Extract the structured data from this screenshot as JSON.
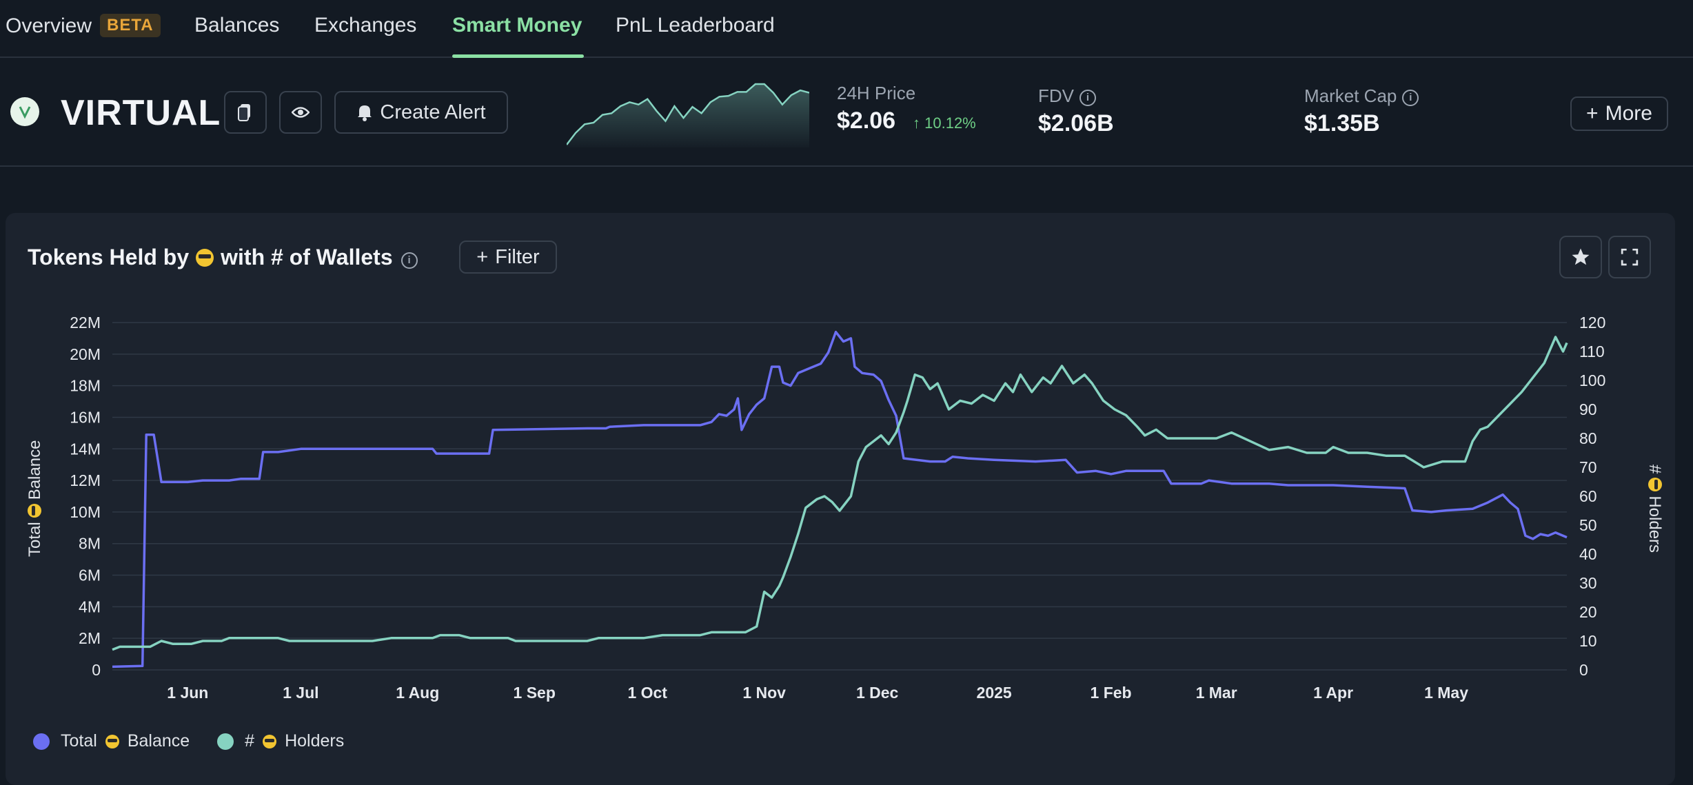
{
  "nav": {
    "items": [
      {
        "label": "Overview",
        "badge": "BETA"
      },
      {
        "label": "Balances"
      },
      {
        "label": "Exchanges"
      },
      {
        "label": "Smart Money",
        "active": true
      },
      {
        "label": "PnL Leaderboard"
      }
    ]
  },
  "header": {
    "token": "VIRTUAL",
    "create_alert": "Create Alert",
    "price_label": "24H Price",
    "price_value": "$2.06",
    "price_change": "10.12%",
    "fdv_label": "FDV",
    "fdv_value": "$2.06B",
    "mcap_label": "Market Cap",
    "mcap_value": "$1.35B",
    "more": "More",
    "spark_values": [
      2,
      3.5,
      4.6,
      4.8,
      5.8,
      6,
      6.9,
      7.4,
      7.1,
      7.8,
      6.3,
      5,
      6.9,
      5.4,
      6.8,
      6,
      7.4,
      8.1,
      8.2,
      8.7,
      8.7,
      9.7,
      9.7,
      8.6,
      7.1,
      8.3,
      8.9,
      8.6
    ]
  },
  "chart_panel": {
    "title_prefix": "Tokens Held by",
    "title_suffix": "with # of Wallets",
    "filter": "Filter",
    "left_axis_title_a": "Total",
    "left_axis_title_b": "Balance",
    "right_axis_title_a": "#",
    "right_axis_title_b": "Holders",
    "legend": [
      {
        "label_a": "Total",
        "label_b": "Balance",
        "color": "#6b6ff2"
      },
      {
        "label_a": "#",
        "label_b": "Holders",
        "color": "#86d3c1"
      }
    ]
  },
  "chart_data": {
    "type": "line",
    "x_ticks": [
      "1 Jun",
      "1 Jul",
      "1 Aug",
      "1 Sep",
      "1 Oct",
      "1 Nov",
      "1 Dec",
      "2025",
      "1 Feb",
      "1 Mar",
      "1 Apr",
      "1 May"
    ],
    "y_left_ticks": [
      "0",
      "2M",
      "4M",
      "6M",
      "8M",
      "10M",
      "12M",
      "14M",
      "16M",
      "18M",
      "20M",
      "22M"
    ],
    "y_right_ticks": [
      "0",
      "10",
      "20",
      "30",
      "40",
      "50",
      "60",
      "70",
      "80",
      "90",
      "100",
      "110",
      "120"
    ],
    "y_left_range": [
      0,
      22000000
    ],
    "y_right_range": [
      0,
      120
    ],
    "series": [
      {
        "axis": "left",
        "color": "#6b6ff2",
        "points": [
          [
            "2024-05-12",
            0.2
          ],
          [
            "2024-05-20",
            0.25
          ],
          [
            "2024-05-21",
            14.9
          ],
          [
            "2024-05-23",
            14.9
          ],
          [
            "2024-05-25",
            11.9
          ],
          [
            "2024-06-01",
            11.9
          ],
          [
            "2024-06-05",
            12.0
          ],
          [
            "2024-06-12",
            12.0
          ],
          [
            "2024-06-15",
            12.1
          ],
          [
            "2024-06-20",
            12.1
          ],
          [
            "2024-06-21",
            13.8
          ],
          [
            "2024-06-25",
            13.8
          ],
          [
            "2024-06-28",
            13.9
          ],
          [
            "2024-07-01",
            14.0
          ],
          [
            "2024-07-20",
            14.0
          ],
          [
            "2024-08-01",
            14.0
          ],
          [
            "2024-08-05",
            14.0
          ],
          [
            "2024-08-06",
            13.7
          ],
          [
            "2024-08-20",
            13.7
          ],
          [
            "2024-08-21",
            15.2
          ],
          [
            "2024-09-15",
            15.3
          ],
          [
            "2024-09-20",
            15.3
          ],
          [
            "2024-09-21",
            15.4
          ],
          [
            "2024-09-30",
            15.5
          ],
          [
            "2024-10-15",
            15.5
          ],
          [
            "2024-10-18",
            15.7
          ],
          [
            "2024-10-20",
            16.2
          ],
          [
            "2024-10-22",
            16.1
          ],
          [
            "2024-10-24",
            16.5
          ],
          [
            "2024-10-25",
            17.2
          ],
          [
            "2024-10-26",
            15.2
          ],
          [
            "2024-10-28",
            16.2
          ],
          [
            "2024-10-30",
            16.8
          ],
          [
            "2024-11-01",
            17.2
          ],
          [
            "2024-11-03",
            19.2
          ],
          [
            "2024-11-05",
            19.2
          ],
          [
            "2024-11-06",
            18.2
          ],
          [
            "2024-11-08",
            18.0
          ],
          [
            "2024-11-10",
            18.8
          ],
          [
            "2024-11-13",
            19.1
          ],
          [
            "2024-11-16",
            19.4
          ],
          [
            "2024-11-18",
            20.1
          ],
          [
            "2024-11-20",
            21.4
          ],
          [
            "2024-11-22",
            20.8
          ],
          [
            "2024-11-24",
            21.0
          ],
          [
            "2024-11-25",
            19.2
          ],
          [
            "2024-11-27",
            18.8
          ],
          [
            "2024-11-30",
            18.7
          ],
          [
            "2024-12-02",
            18.3
          ],
          [
            "2024-12-04",
            17.1
          ],
          [
            "2024-12-06",
            16.1
          ],
          [
            "2024-12-08",
            13.4
          ],
          [
            "2024-12-15",
            13.2
          ],
          [
            "2024-12-19",
            13.2
          ],
          [
            "2024-12-21",
            13.5
          ],
          [
            "2024-12-25",
            13.4
          ],
          [
            "2025-01-01",
            13.3
          ],
          [
            "2025-01-12",
            13.2
          ],
          [
            "2025-01-20",
            13.3
          ],
          [
            "2025-01-23",
            12.5
          ],
          [
            "2025-01-28",
            12.6
          ],
          [
            "2025-02-01",
            12.4
          ],
          [
            "2025-02-05",
            12.6
          ],
          [
            "2025-02-15",
            12.6
          ],
          [
            "2025-02-17",
            11.8
          ],
          [
            "2025-02-25",
            11.8
          ],
          [
            "2025-02-27",
            12.0
          ],
          [
            "2025-03-05",
            11.8
          ],
          [
            "2025-03-15",
            11.8
          ],
          [
            "2025-03-20",
            11.7
          ],
          [
            "2025-04-01",
            11.7
          ],
          [
            "2025-04-10",
            11.6
          ],
          [
            "2025-04-20",
            11.5
          ],
          [
            "2025-04-22",
            10.1
          ],
          [
            "2025-04-27",
            10.0
          ],
          [
            "2025-05-01",
            10.1
          ],
          [
            "2025-05-08",
            10.2
          ],
          [
            "2025-05-12",
            10.6
          ],
          [
            "2025-05-16",
            11.1
          ],
          [
            "2025-05-18",
            10.6
          ],
          [
            "2025-05-20",
            10.2
          ],
          [
            "2025-05-22",
            8.5
          ],
          [
            "2025-05-24",
            8.3
          ],
          [
            "2025-05-26",
            8.6
          ],
          [
            "2025-05-28",
            8.5
          ],
          [
            "2025-05-30",
            8.7
          ],
          [
            "2025-06-02",
            8.4
          ]
        ]
      },
      {
        "axis": "right",
        "color": "#86d3c1",
        "points": [
          [
            "2024-05-12",
            7
          ],
          [
            "2024-05-14",
            8
          ],
          [
            "2024-05-22",
            8
          ],
          [
            "2024-05-25",
            10
          ],
          [
            "2024-05-28",
            9
          ],
          [
            "2024-06-02",
            9
          ],
          [
            "2024-06-05",
            10
          ],
          [
            "2024-06-10",
            10
          ],
          [
            "2024-06-12",
            11
          ],
          [
            "2024-06-25",
            11
          ],
          [
            "2024-06-28",
            10
          ],
          [
            "2024-07-20",
            10
          ],
          [
            "2024-07-25",
            11
          ],
          [
            "2024-08-05",
            11
          ],
          [
            "2024-08-07",
            12
          ],
          [
            "2024-08-12",
            12
          ],
          [
            "2024-08-15",
            11
          ],
          [
            "2024-08-25",
            11
          ],
          [
            "2024-08-27",
            10
          ],
          [
            "2024-09-15",
            10
          ],
          [
            "2024-09-18",
            11
          ],
          [
            "2024-09-30",
            11
          ],
          [
            "2024-10-05",
            12
          ],
          [
            "2024-10-15",
            12
          ],
          [
            "2024-10-18",
            13
          ],
          [
            "2024-10-27",
            13
          ],
          [
            "2024-10-30",
            15
          ],
          [
            "2024-11-01",
            27
          ],
          [
            "2024-11-03",
            25
          ],
          [
            "2024-11-05",
            29
          ],
          [
            "2024-11-06",
            32
          ],
          [
            "2024-11-08",
            39
          ],
          [
            "2024-11-10",
            47
          ],
          [
            "2024-11-12",
            56
          ],
          [
            "2024-11-15",
            59
          ],
          [
            "2024-11-17",
            60
          ],
          [
            "2024-11-19",
            58
          ],
          [
            "2024-11-21",
            55
          ],
          [
            "2024-11-24",
            60
          ],
          [
            "2024-11-26",
            72
          ],
          [
            "2024-11-28",
            77
          ],
          [
            "2024-11-30",
            79
          ],
          [
            "2024-12-02",
            81
          ],
          [
            "2024-12-04",
            78
          ],
          [
            "2024-12-06",
            82
          ],
          [
            "2024-12-08",
            89
          ],
          [
            "2024-12-09",
            93
          ],
          [
            "2024-12-11",
            102
          ],
          [
            "2024-12-13",
            101
          ],
          [
            "2024-12-15",
            97
          ],
          [
            "2024-12-17",
            99
          ],
          [
            "2024-12-20",
            90
          ],
          [
            "2024-12-23",
            93
          ],
          [
            "2024-12-26",
            92
          ],
          [
            "2024-12-29",
            95
          ],
          [
            "2025-01-01",
            93
          ],
          [
            "2025-01-04",
            99
          ],
          [
            "2025-01-06",
            96
          ],
          [
            "2025-01-08",
            102
          ],
          [
            "2025-01-11",
            96
          ],
          [
            "2025-01-14",
            101
          ],
          [
            "2025-01-16",
            99
          ],
          [
            "2025-01-19",
            105
          ],
          [
            "2025-01-22",
            99
          ],
          [
            "2025-01-25",
            102
          ],
          [
            "2025-01-27",
            99
          ],
          [
            "2025-01-30",
            93
          ],
          [
            "2025-02-02",
            90
          ],
          [
            "2025-02-05",
            88
          ],
          [
            "2025-02-08",
            84
          ],
          [
            "2025-02-10",
            81
          ],
          [
            "2025-02-13",
            83
          ],
          [
            "2025-02-16",
            80
          ],
          [
            "2025-02-20",
            80
          ],
          [
            "2025-02-24",
            80
          ],
          [
            "2025-03-01",
            80
          ],
          [
            "2025-03-05",
            82
          ],
          [
            "2025-03-10",
            79
          ],
          [
            "2025-03-15",
            76
          ],
          [
            "2025-03-20",
            77
          ],
          [
            "2025-03-25",
            75
          ],
          [
            "2025-03-30",
            75
          ],
          [
            "2025-04-01",
            77
          ],
          [
            "2025-04-05",
            75
          ],
          [
            "2025-04-10",
            75
          ],
          [
            "2025-04-15",
            74
          ],
          [
            "2025-04-20",
            74
          ],
          [
            "2025-04-25",
            70
          ],
          [
            "2025-04-30",
            72
          ],
          [
            "2025-05-03",
            72
          ],
          [
            "2025-05-06",
            72
          ],
          [
            "2025-05-08",
            79
          ],
          [
            "2025-05-10",
            83
          ],
          [
            "2025-05-12",
            84
          ],
          [
            "2025-05-15",
            88
          ],
          [
            "2025-05-18",
            92
          ],
          [
            "2025-05-21",
            96
          ],
          [
            "2025-05-24",
            101
          ],
          [
            "2025-05-27",
            106
          ],
          [
            "2025-05-30",
            115
          ],
          [
            "2025-06-01",
            110
          ],
          [
            "2025-06-02",
            113
          ]
        ]
      }
    ]
  }
}
